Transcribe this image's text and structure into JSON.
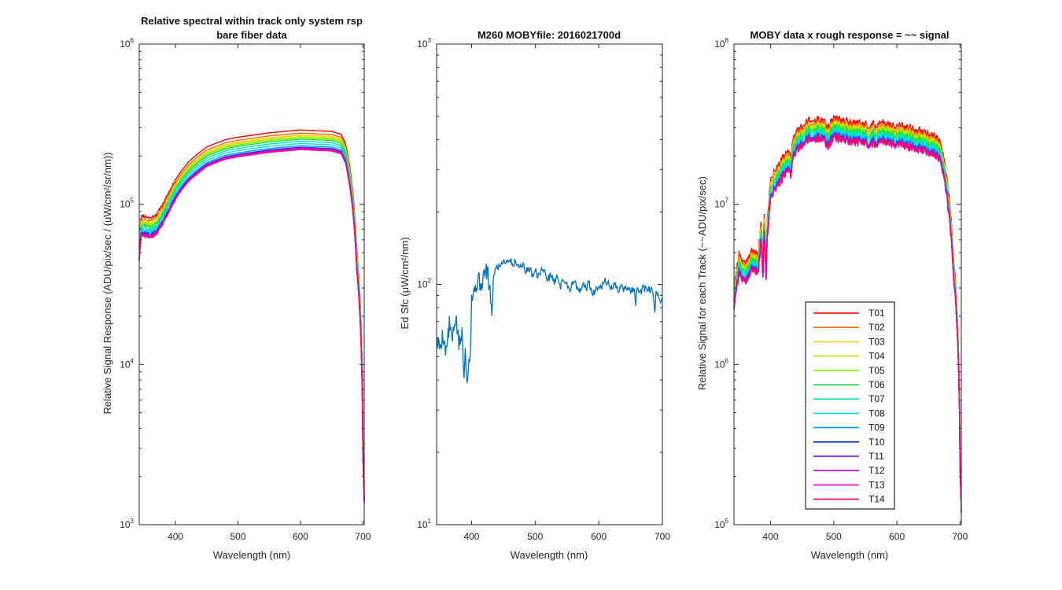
{
  "chart_data": [
    {
      "type": "line",
      "title": "Relative spectral within track only system rsp",
      "subtitle": "bare fiber data",
      "xlabel": "Wavelength (nm)",
      "ylabel": "Relative Signal Response (ADU/pix/sec / (uW/cm²/sr/nm))",
      "xlim": [
        342,
        702
      ],
      "xticks": [
        400,
        500,
        600,
        700
      ],
      "yscale": "log",
      "ylim": [
        1000,
        1000000
      ],
      "yticks": [
        {
          "base": "10",
          "exp": "3",
          "value": 1000
        },
        {
          "base": "10",
          "exp": "4",
          "value": 10000
        },
        {
          "base": "10",
          "exp": "5",
          "value": 100000
        },
        {
          "base": "10",
          "exp": "6",
          "value": 1000000
        }
      ],
      "profile": {
        "x": [
          342,
          345,
          350,
          360,
          370,
          380,
          390,
          400,
          420,
          450,
          480,
          500,
          550,
          600,
          650,
          665,
          672,
          680,
          690,
          700,
          702
        ],
        "y": [
          52000,
          74000,
          74000,
          72000,
          76000,
          88000,
          105000,
          125000,
          160000,
          200000,
          222000,
          230000,
          245000,
          255000,
          250000,
          240000,
          210000,
          140000,
          45000,
          3000,
          1600
        ]
      },
      "series_scales": [
        1.14,
        1.09,
        1.06,
        1.04,
        1.02,
        1.0,
        0.97,
        0.94,
        0.91,
        0.89,
        0.87,
        0.88,
        0.86,
        0.87
      ],
      "series": [
        {
          "name": "T01",
          "color": "#ff0000"
        },
        {
          "name": "T02",
          "color": "#ff6a00"
        },
        {
          "name": "T03",
          "color": "#ffd000"
        },
        {
          "name": "T04",
          "color": "#c8e600"
        },
        {
          "name": "T05",
          "color": "#7df000"
        },
        {
          "name": "T06",
          "color": "#14e040"
        },
        {
          "name": "T07",
          "color": "#00e6a0"
        },
        {
          "name": "T08",
          "color": "#00dcf0"
        },
        {
          "name": "T09",
          "color": "#0096ff"
        },
        {
          "name": "T10",
          "color": "#0028ff"
        },
        {
          "name": "T11",
          "color": "#5a00ff"
        },
        {
          "name": "T12",
          "color": "#c800ff"
        },
        {
          "name": "T13",
          "color": "#ff00dc"
        },
        {
          "name": "T14",
          "color": "#ff0064"
        }
      ]
    },
    {
      "type": "line",
      "title": "M260 MOBYfile: 2016021700d",
      "xlabel": "Wavelength (nm)",
      "ylabel": "Ed Sfc  (μW/cm²/nm)",
      "xlim": [
        345,
        700
      ],
      "xticks": [
        400,
        500,
        600,
        700
      ],
      "yscale": "log",
      "ylim": [
        10,
        1000
      ],
      "yticks": [
        {
          "base": "10",
          "exp": "1",
          "value": 10
        },
        {
          "base": "10",
          "exp": "2",
          "value": 100
        },
        {
          "base": "10",
          "exp": "3",
          "value": 1000
        }
      ],
      "series": [
        {
          "name": "Ed Sfc",
          "color": "#0072bd",
          "x": [
            345,
            350,
            355,
            360,
            365,
            370,
            375,
            380,
            385,
            388,
            390,
            393,
            395,
            398,
            400,
            405,
            410,
            415,
            420,
            425,
            430,
            432,
            435,
            440,
            445,
            450,
            455,
            460,
            465,
            470,
            475,
            480,
            485,
            490,
            495,
            500,
            505,
            510,
            515,
            520,
            525,
            530,
            535,
            540,
            545,
            550,
            555,
            560,
            565,
            570,
            575,
            580,
            585,
            590,
            595,
            600,
            605,
            610,
            615,
            620,
            625,
            630,
            635,
            640,
            645,
            650,
            655,
            658,
            660,
            665,
            670,
            675,
            680,
            685,
            688,
            690,
            695,
            700
          ],
          "y": [
            58,
            55,
            62,
            52,
            68,
            58,
            74,
            56,
            62,
            40,
            58,
            37,
            48,
            52,
            88,
            95,
            105,
            100,
            110,
            115,
            85,
            75,
            112,
            118,
            120,
            126,
            124,
            128,
            120,
            125,
            118,
            122,
            112,
            118,
            110,
            115,
            108,
            116,
            112,
            105,
            110,
            102,
            108,
            98,
            105,
            100,
            95,
            104,
            98,
            92,
            100,
            96,
            102,
            90,
            95,
            100,
            98,
            104,
            100,
            97,
            100,
            94,
            98,
            95,
            98,
            93,
            97,
            84,
            95,
            92,
            97,
            94,
            96,
            94,
            74,
            92,
            88,
            85
          ]
        }
      ]
    },
    {
      "type": "line",
      "title": "MOBY data x rough response = ~~ signal",
      "xlabel": "Wavelength (nm)",
      "ylabel": "Relative Signal for each Track (~~ADU/pix/sec)",
      "xlim": [
        342,
        702
      ],
      "xticks": [
        400,
        500,
        600,
        700
      ],
      "yscale": "log",
      "ylim": [
        100000,
        100000000
      ],
      "yticks": [
        {
          "base": "10",
          "exp": "5",
          "value": 100000
        },
        {
          "base": "10",
          "exp": "6",
          "value": 1000000
        },
        {
          "base": "10",
          "exp": "7",
          "value": 10000000
        },
        {
          "base": "10",
          "exp": "8",
          "value": 100000000
        }
      ],
      "profile": {
        "x": [
          342,
          350,
          360,
          370,
          380,
          385,
          388,
          390,
          393,
          395,
          398,
          400,
          410,
          420,
          430,
          432,
          435,
          440,
          450,
          460,
          470,
          480,
          490,
          500,
          520,
          540,
          560,
          580,
          600,
          620,
          640,
          655,
          665,
          672,
          680,
          690,
          700,
          702
        ],
        "y": [
          2600000,
          4300000,
          3600000,
          4600000,
          4200000,
          6500000,
          4100000,
          7400000,
          4000000,
          7000000,
          10000000,
          13000000,
          14800000,
          17000000,
          19000000,
          17500000,
          22000000,
          24500000,
          27000000,
          29000000,
          29000000,
          30500000,
          26500000,
          30000000,
          29000000,
          28000000,
          27500000,
          28500000,
          27000000,
          26500000,
          25500000,
          24000000,
          22500000,
          19000000,
          12000000,
          3800000,
          250000,
          130000
        ]
      },
      "legend": {
        "location": "inside lower-right",
        "entries": [
          "T01",
          "T02",
          "T03",
          "T04",
          "T05",
          "T06",
          "T07",
          "T08",
          "T09",
          "T10",
          "T11",
          "T12",
          "T13",
          "T14"
        ]
      }
    }
  ]
}
